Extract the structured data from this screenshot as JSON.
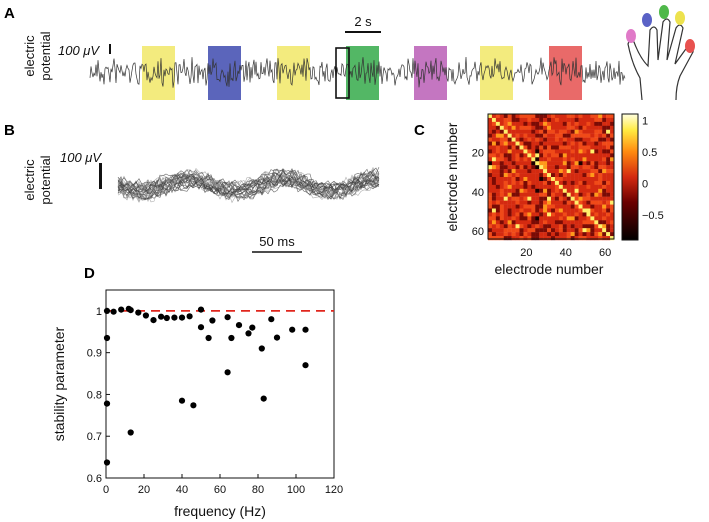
{
  "panels": {
    "A": {
      "letter": "A",
      "ylabel_line1": "electric",
      "ylabel_line2": "potential",
      "scale_label": "100 μV",
      "time_scale_label": "2 s",
      "highlight_colors": [
        "#f0e55a",
        "#2d3aa8",
        "#f0e55a",
        "#22a33a",
        "#b44fb0",
        "#f0e55a",
        "#e3403f"
      ],
      "finger_colors": [
        "#e07ac8",
        "#5a62c6",
        "#4fb84a",
        "#ede24e",
        "#e8514f"
      ]
    },
    "B": {
      "letter": "B",
      "ylabel_line1": "electric",
      "ylabel_line2": "potential",
      "scale_label": "100 μV",
      "time_scale_label": "50 ms"
    },
    "C": {
      "letter": "C",
      "title": "",
      "xlabel": "electrode number",
      "ylabel": "electrode number",
      "x_ticks": [
        "20",
        "40",
        "60"
      ],
      "y_ticks": [
        "20",
        "40",
        "60"
      ],
      "colorbar_ticks": [
        "1",
        "0.5",
        "0",
        "−0.5"
      ]
    },
    "D": {
      "letter": "D"
    }
  },
  "chart_data": [
    {
      "type": "heatmap",
      "title": "",
      "xlabel": "electrode number",
      "ylabel": "electrode number",
      "x_range": [
        1,
        64
      ],
      "y_range": [
        1,
        64
      ],
      "x_ticks": [
        20,
        40,
        60
      ],
      "y_ticks": [
        20,
        40,
        60
      ],
      "colorbar_range": [
        -0.9,
        1.1
      ],
      "colorbar_ticks": [
        1,
        0.5,
        0,
        -0.5
      ],
      "diagonal_value": 1
    },
    {
      "type": "scatter",
      "title": "",
      "xlabel": "frequency (Hz)",
      "ylabel": "stability parameter",
      "xlim": [
        0,
        120
      ],
      "ylim": [
        0.6,
        1.05
      ],
      "x_ticks": [
        "0",
        "20",
        "40",
        "60",
        "80",
        "100",
        "120"
      ],
      "y_ticks": [
        "0.6",
        "0.7",
        "0.8",
        "0.9",
        "1"
      ],
      "reference_line": {
        "y": 1,
        "style": "dashed",
        "color": "#e0261d"
      },
      "points": [
        [
          0.5,
          1.0
        ],
        [
          0.5,
          0.935
        ],
        [
          0.5,
          0.778
        ],
        [
          0.5,
          0.637
        ],
        [
          4,
          0.998
        ],
        [
          8,
          1.003
        ],
        [
          12,
          1.005
        ],
        [
          13,
          1.002
        ],
        [
          13,
          0.709
        ],
        [
          17,
          0.996
        ],
        [
          21,
          0.989
        ],
        [
          25,
          0.978
        ],
        [
          29,
          0.986
        ],
        [
          32,
          0.983
        ],
        [
          36,
          0.984
        ],
        [
          40,
          0.984
        ],
        [
          40,
          0.785
        ],
        [
          44,
          0.987
        ],
        [
          46,
          0.774
        ],
        [
          50,
          1.003
        ],
        [
          50,
          0.961
        ],
        [
          54,
          0.935
        ],
        [
          56,
          0.977
        ],
        [
          64,
          0.985
        ],
        [
          64,
          0.853
        ],
        [
          66,
          0.935
        ],
        [
          70,
          0.966
        ],
        [
          75,
          0.946
        ],
        [
          77,
          0.96
        ],
        [
          82,
          0.91
        ],
        [
          83,
          0.79
        ],
        [
          87,
          0.98
        ],
        [
          90,
          0.936
        ],
        [
          98,
          0.955
        ],
        [
          105,
          0.955
        ],
        [
          105,
          0.87
        ]
      ]
    }
  ]
}
